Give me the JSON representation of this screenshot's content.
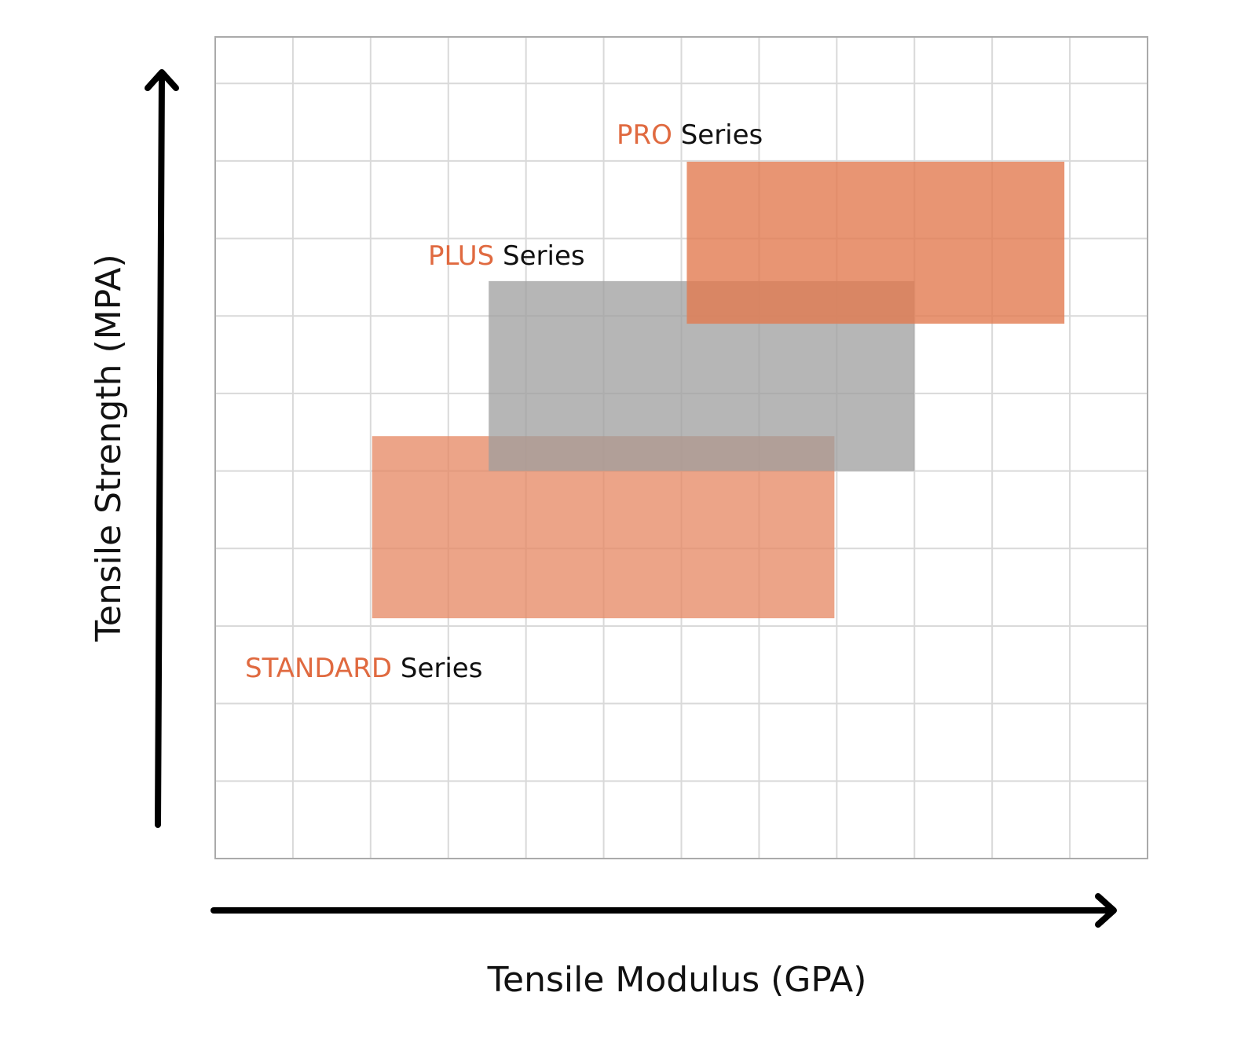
{
  "chart_data": {
    "type": "range-region",
    "xlabel": "Tensile Modulus (GPA)",
    "ylabel": "Tensile Strength (MPA)",
    "xlim": [
      0,
      12
    ],
    "ylim": [
      0,
      10.6
    ],
    "grid": true,
    "tick_labels_shown": false,
    "regions": [
      {
        "name_accent": "STANDARD",
        "name_suffix": "Series",
        "x_range": [
          2.02,
          7.97
        ],
        "y_range": [
          3.1,
          5.45
        ],
        "color": "#e68660",
        "opacity": 0.75
      },
      {
        "name_accent": "PLUS",
        "name_suffix": "Series",
        "x_range": [
          3.52,
          9.0
        ],
        "y_range": [
          5.0,
          7.45
        ],
        "color": "#9e9e9e",
        "opacity": 0.75
      },
      {
        "name_accent": "PRO",
        "name_suffix": "Series",
        "x_range": [
          6.07,
          10.93
        ],
        "y_range": [
          6.9,
          8.99
        ],
        "color": "#e27a50",
        "opacity": 0.8
      }
    ]
  },
  "colors": {
    "accent_text": "#e06a40",
    "grid": "#d9d9d9",
    "frame": "#aaaaaa",
    "axis_arrow": "#000000"
  }
}
